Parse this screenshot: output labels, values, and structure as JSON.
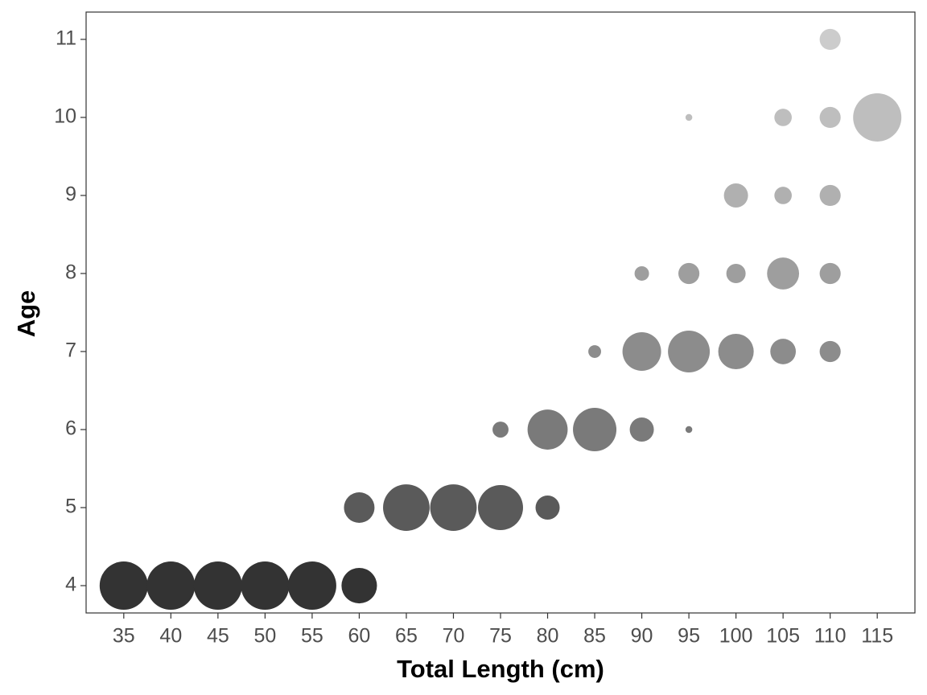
{
  "chart_data": {
    "type": "scatter",
    "x_label": "Total Length (cm)",
    "y_label": "Age",
    "xlim": [
      31,
      119
    ],
    "ylim": [
      3.65,
      11.35
    ],
    "xticks": [
      35,
      40,
      45,
      50,
      55,
      60,
      65,
      70,
      75,
      80,
      85,
      90,
      95,
      100,
      105,
      110,
      115
    ],
    "yticks": [
      4,
      5,
      6,
      7,
      8,
      9,
      10,
      11
    ],
    "points": {
      "x": [
        35,
        40,
        45,
        50,
        55,
        60,
        60,
        65,
        70,
        75,
        80,
        75,
        80,
        85,
        90,
        95,
        85,
        90,
        95,
        100,
        105,
        110,
        90,
        95,
        100,
        105,
        110,
        100,
        105,
        110,
        95,
        105,
        110,
        115,
        110
      ],
      "y": [
        4,
        4,
        4,
        4,
        4,
        4,
        5,
        5,
        5,
        5,
        5,
        6,
        6,
        6,
        6,
        6,
        7,
        7,
        7,
        7,
        7,
        7,
        8,
        8,
        8,
        8,
        8,
        9,
        9,
        9,
        10,
        10,
        10,
        10,
        11
      ],
      "size": [
        1,
        1,
        1,
        1,
        1,
        0.54,
        0.4,
        0.93,
        0.93,
        0.87,
        0.25,
        0.11,
        0.69,
        0.81,
        0.25,
        0.02,
        0.07,
        0.64,
        0.75,
        0.54,
        0.28,
        0.19,
        0.09,
        0.19,
        0.16,
        0.44,
        0.19,
        0.25,
        0.13,
        0.19,
        0.02,
        0.13,
        0.19,
        1,
        0.19
      ],
      "color": [
        "#333333",
        "#333333",
        "#333333",
        "#333333",
        "#333333",
        "#333333",
        "#5a5a5a",
        "#5a5a5a",
        "#5a5a5a",
        "#5a5a5a",
        "#5a5a5a",
        "#7a7a7a",
        "#7a7a7a",
        "#7a7a7a",
        "#7a7a7a",
        "#7a7a7a",
        "#8c8c8c",
        "#8c8c8c",
        "#8c8c8c",
        "#8c8c8c",
        "#8c8c8c",
        "#8c8c8c",
        "#9e9e9e",
        "#9e9e9e",
        "#9e9e9e",
        "#9e9e9e",
        "#9e9e9e",
        "#b0b0b0",
        "#b0b0b0",
        "#b0b0b0",
        "#bebebe",
        "#bebebe",
        "#bebebe",
        "#bebebe",
        "#cccccc"
      ]
    },
    "grid": false
  }
}
